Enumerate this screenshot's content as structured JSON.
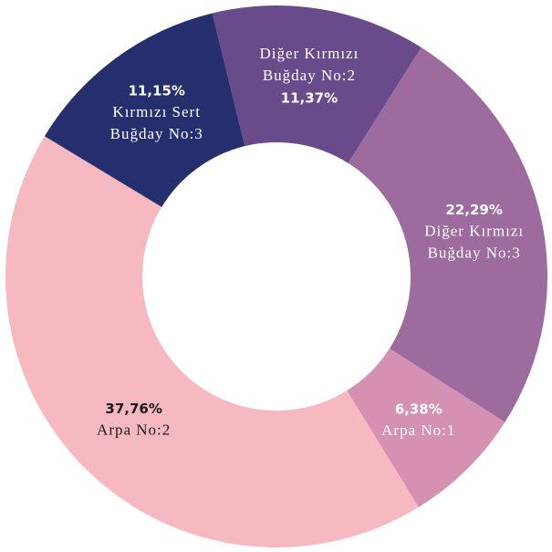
{
  "chart_data": {
    "type": "donut",
    "categories": [
      [
        "Diğer Kırmızı",
        "Buğday No:2"
      ],
      [
        "Diğer Kırmızı",
        "Buğday No:3"
      ],
      [
        "Arpa No:1"
      ],
      [
        "Arpa No:2"
      ],
      [
        "Kırmızı Sert",
        "Buğday No:3"
      ]
    ],
    "values": [
      11.37,
      22.29,
      6.38,
      37.76,
      11.15
    ],
    "value_labels": [
      "11,37%",
      "22,29%",
      "6,38%",
      "37,76%",
      "11,15%"
    ],
    "colors": [
      "#694a8a",
      "#9e6b9e",
      "#d591b1",
      "#f7b9c1",
      "#252f6e"
    ]
  }
}
